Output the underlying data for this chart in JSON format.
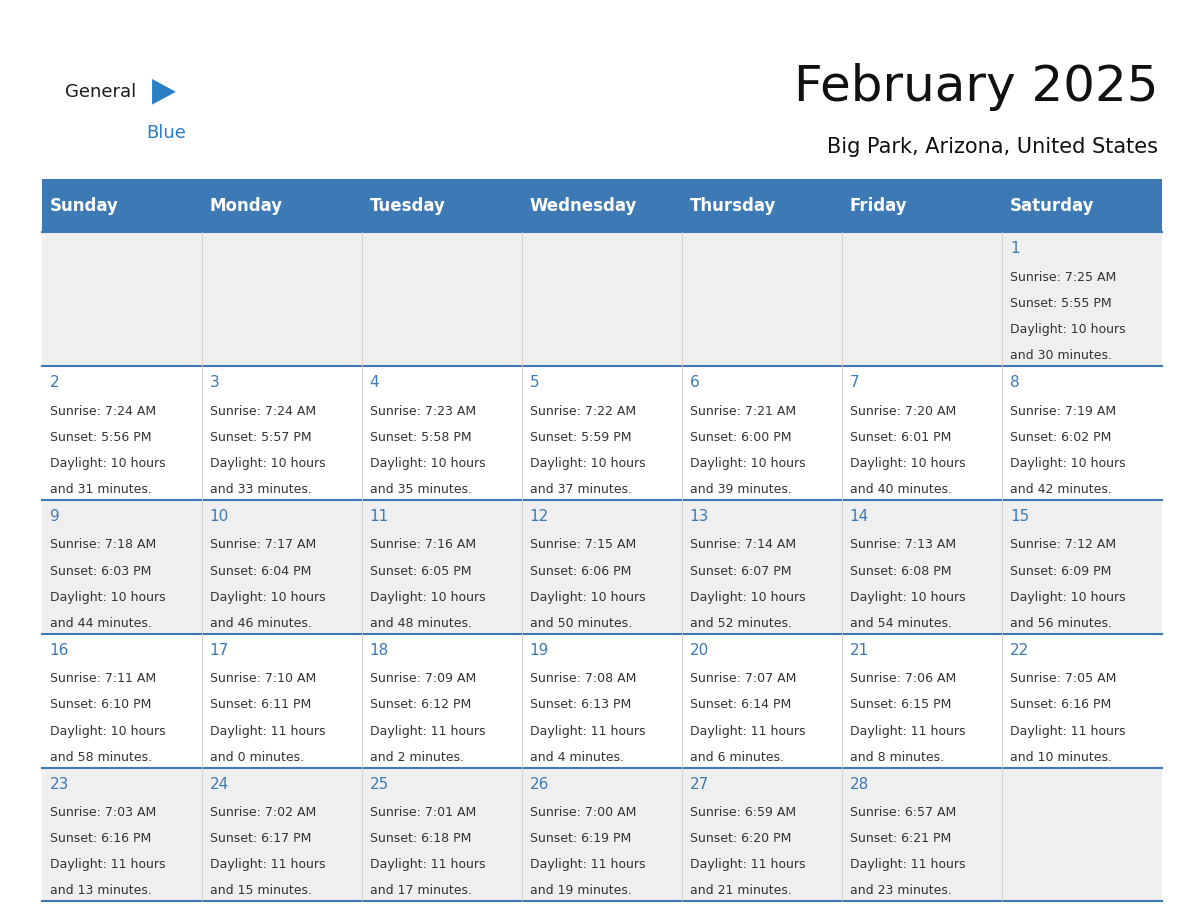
{
  "title": "February 2025",
  "subtitle": "Big Park, Arizona, United States",
  "header_color": "#3d7ab5",
  "header_text_color": "#ffffff",
  "cell_bg_odd": "#efefef",
  "cell_bg_even": "#ffffff",
  "day_number_color": "#3d7ab5",
  "text_color": "#333333",
  "logo_general_color": "#1a1a1a",
  "logo_blue_color": "#2a7fc4",
  "logo_triangle_color": "#2a7fc4",
  "days_of_week": [
    "Sunday",
    "Monday",
    "Tuesday",
    "Wednesday",
    "Thursday",
    "Friday",
    "Saturday"
  ],
  "calendar": [
    [
      null,
      null,
      null,
      null,
      null,
      null,
      {
        "day": "1",
        "sunrise": "7:25 AM",
        "sunset": "5:55 PM",
        "daylight_line1": "Daylight: 10 hours",
        "daylight_line2": "and 30 minutes."
      }
    ],
    [
      {
        "day": "2",
        "sunrise": "7:24 AM",
        "sunset": "5:56 PM",
        "daylight_line1": "Daylight: 10 hours",
        "daylight_line2": "and 31 minutes."
      },
      {
        "day": "3",
        "sunrise": "7:24 AM",
        "sunset": "5:57 PM",
        "daylight_line1": "Daylight: 10 hours",
        "daylight_line2": "and 33 minutes."
      },
      {
        "day": "4",
        "sunrise": "7:23 AM",
        "sunset": "5:58 PM",
        "daylight_line1": "Daylight: 10 hours",
        "daylight_line2": "and 35 minutes."
      },
      {
        "day": "5",
        "sunrise": "7:22 AM",
        "sunset": "5:59 PM",
        "daylight_line1": "Daylight: 10 hours",
        "daylight_line2": "and 37 minutes."
      },
      {
        "day": "6",
        "sunrise": "7:21 AM",
        "sunset": "6:00 PM",
        "daylight_line1": "Daylight: 10 hours",
        "daylight_line2": "and 39 minutes."
      },
      {
        "day": "7",
        "sunrise": "7:20 AM",
        "sunset": "6:01 PM",
        "daylight_line1": "Daylight: 10 hours",
        "daylight_line2": "and 40 minutes."
      },
      {
        "day": "8",
        "sunrise": "7:19 AM",
        "sunset": "6:02 PM",
        "daylight_line1": "Daylight: 10 hours",
        "daylight_line2": "and 42 minutes."
      }
    ],
    [
      {
        "day": "9",
        "sunrise": "7:18 AM",
        "sunset": "6:03 PM",
        "daylight_line1": "Daylight: 10 hours",
        "daylight_line2": "and 44 minutes."
      },
      {
        "day": "10",
        "sunrise": "7:17 AM",
        "sunset": "6:04 PM",
        "daylight_line1": "Daylight: 10 hours",
        "daylight_line2": "and 46 minutes."
      },
      {
        "day": "11",
        "sunrise": "7:16 AM",
        "sunset": "6:05 PM",
        "daylight_line1": "Daylight: 10 hours",
        "daylight_line2": "and 48 minutes."
      },
      {
        "day": "12",
        "sunrise": "7:15 AM",
        "sunset": "6:06 PM",
        "daylight_line1": "Daylight: 10 hours",
        "daylight_line2": "and 50 minutes."
      },
      {
        "day": "13",
        "sunrise": "7:14 AM",
        "sunset": "6:07 PM",
        "daylight_line1": "Daylight: 10 hours",
        "daylight_line2": "and 52 minutes."
      },
      {
        "day": "14",
        "sunrise": "7:13 AM",
        "sunset": "6:08 PM",
        "daylight_line1": "Daylight: 10 hours",
        "daylight_line2": "and 54 minutes."
      },
      {
        "day": "15",
        "sunrise": "7:12 AM",
        "sunset": "6:09 PM",
        "daylight_line1": "Daylight: 10 hours",
        "daylight_line2": "and 56 minutes."
      }
    ],
    [
      {
        "day": "16",
        "sunrise": "7:11 AM",
        "sunset": "6:10 PM",
        "daylight_line1": "Daylight: 10 hours",
        "daylight_line2": "and 58 minutes."
      },
      {
        "day": "17",
        "sunrise": "7:10 AM",
        "sunset": "6:11 PM",
        "daylight_line1": "Daylight: 11 hours",
        "daylight_line2": "and 0 minutes."
      },
      {
        "day": "18",
        "sunrise": "7:09 AM",
        "sunset": "6:12 PM",
        "daylight_line1": "Daylight: 11 hours",
        "daylight_line2": "and 2 minutes."
      },
      {
        "day": "19",
        "sunrise": "7:08 AM",
        "sunset": "6:13 PM",
        "daylight_line1": "Daylight: 11 hours",
        "daylight_line2": "and 4 minutes."
      },
      {
        "day": "20",
        "sunrise": "7:07 AM",
        "sunset": "6:14 PM",
        "daylight_line1": "Daylight: 11 hours",
        "daylight_line2": "and 6 minutes."
      },
      {
        "day": "21",
        "sunrise": "7:06 AM",
        "sunset": "6:15 PM",
        "daylight_line1": "Daylight: 11 hours",
        "daylight_line2": "and 8 minutes."
      },
      {
        "day": "22",
        "sunrise": "7:05 AM",
        "sunset": "6:16 PM",
        "daylight_line1": "Daylight: 11 hours",
        "daylight_line2": "and 10 minutes."
      }
    ],
    [
      {
        "day": "23",
        "sunrise": "7:03 AM",
        "sunset": "6:16 PM",
        "daylight_line1": "Daylight: 11 hours",
        "daylight_line2": "and 13 minutes."
      },
      {
        "day": "24",
        "sunrise": "7:02 AM",
        "sunset": "6:17 PM",
        "daylight_line1": "Daylight: 11 hours",
        "daylight_line2": "and 15 minutes."
      },
      {
        "day": "25",
        "sunrise": "7:01 AM",
        "sunset": "6:18 PM",
        "daylight_line1": "Daylight: 11 hours",
        "daylight_line2": "and 17 minutes."
      },
      {
        "day": "26",
        "sunrise": "7:00 AM",
        "sunset": "6:19 PM",
        "daylight_line1": "Daylight: 11 hours",
        "daylight_line2": "and 19 minutes."
      },
      {
        "day": "27",
        "sunrise": "6:59 AM",
        "sunset": "6:20 PM",
        "daylight_line1": "Daylight: 11 hours",
        "daylight_line2": "and 21 minutes."
      },
      {
        "day": "28",
        "sunrise": "6:57 AM",
        "sunset": "6:21 PM",
        "daylight_line1": "Daylight: 11 hours",
        "daylight_line2": "and 23 minutes."
      },
      null
    ]
  ],
  "fig_width": 11.88,
  "fig_height": 9.18,
  "title_fontsize": 36,
  "subtitle_fontsize": 15,
  "day_header_fontsize": 12,
  "day_number_fontsize": 11,
  "cell_text_fontsize": 9
}
